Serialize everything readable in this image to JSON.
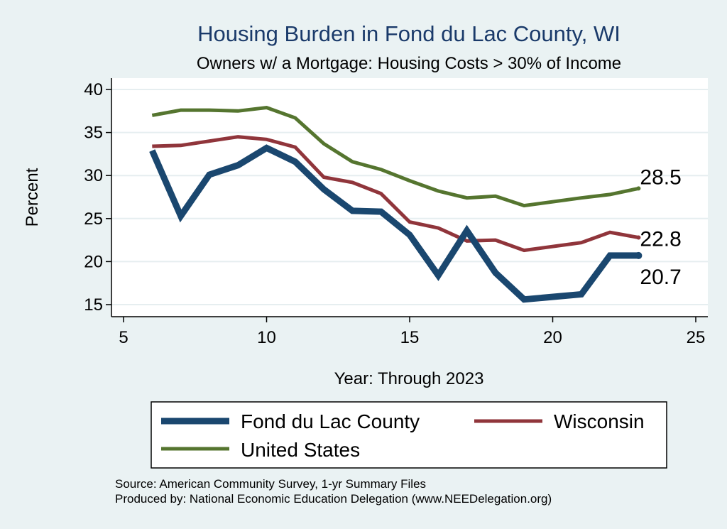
{
  "chart_data": {
    "type": "line",
    "title": "Housing Burden in Fond du Lac County, WI",
    "subtitle": "Owners w/ a Mortgage: Housing Costs > 30% of Income",
    "xlabel": "Year: Through 2023",
    "ylabel": "Percent",
    "xlim": [
      5,
      25
    ],
    "ylim": [
      14,
      41
    ],
    "xticks": [
      5,
      10,
      15,
      20,
      25
    ],
    "yticks": [
      15,
      20,
      25,
      30,
      35,
      40
    ],
    "grid": true,
    "series": [
      {
        "name": "Fond du Lac County",
        "color": "#1a476f",
        "width": 9,
        "x": [
          6,
          7,
          8,
          9,
          10,
          11,
          12,
          13,
          14,
          15,
          16,
          17,
          18,
          19,
          21,
          22,
          23
        ],
        "values": [
          32.9,
          25.3,
          30.1,
          31.2,
          33.2,
          31.6,
          28.4,
          25.9,
          25.8,
          23.1,
          18.4,
          23.6,
          18.7,
          15.6,
          16.2,
          20.7,
          20.7
        ],
        "end_label": "20.7"
      },
      {
        "name": "Wisconsin",
        "color": "#90353b",
        "width": 5,
        "x": [
          6,
          7,
          8,
          9,
          10,
          11,
          12,
          13,
          14,
          15,
          16,
          17,
          18,
          19,
          21,
          22,
          23
        ],
        "values": [
          33.4,
          33.5,
          34.0,
          34.5,
          34.2,
          33.3,
          29.8,
          29.2,
          27.9,
          24.6,
          23.9,
          22.4,
          22.5,
          21.3,
          22.2,
          23.4,
          22.8
        ],
        "end_label": "22.8"
      },
      {
        "name": "United States",
        "color": "#55752f",
        "width": 5,
        "x": [
          6,
          7,
          8,
          9,
          10,
          11,
          12,
          13,
          14,
          15,
          16,
          17,
          18,
          19,
          21,
          22,
          23
        ],
        "values": [
          37.0,
          37.6,
          37.6,
          37.5,
          37.9,
          36.7,
          33.7,
          31.6,
          30.7,
          29.4,
          28.2,
          27.4,
          27.6,
          26.5,
          27.4,
          27.8,
          28.5
        ],
        "end_label": "28.5"
      }
    ]
  },
  "legend_order": [
    0,
    1,
    2
  ],
  "source_lines": [
    "Source: American Community Survey, 1-yr Summary Files",
    "Produced by: National Economic Education Delegation (www.NEEDelegation.org)"
  ]
}
